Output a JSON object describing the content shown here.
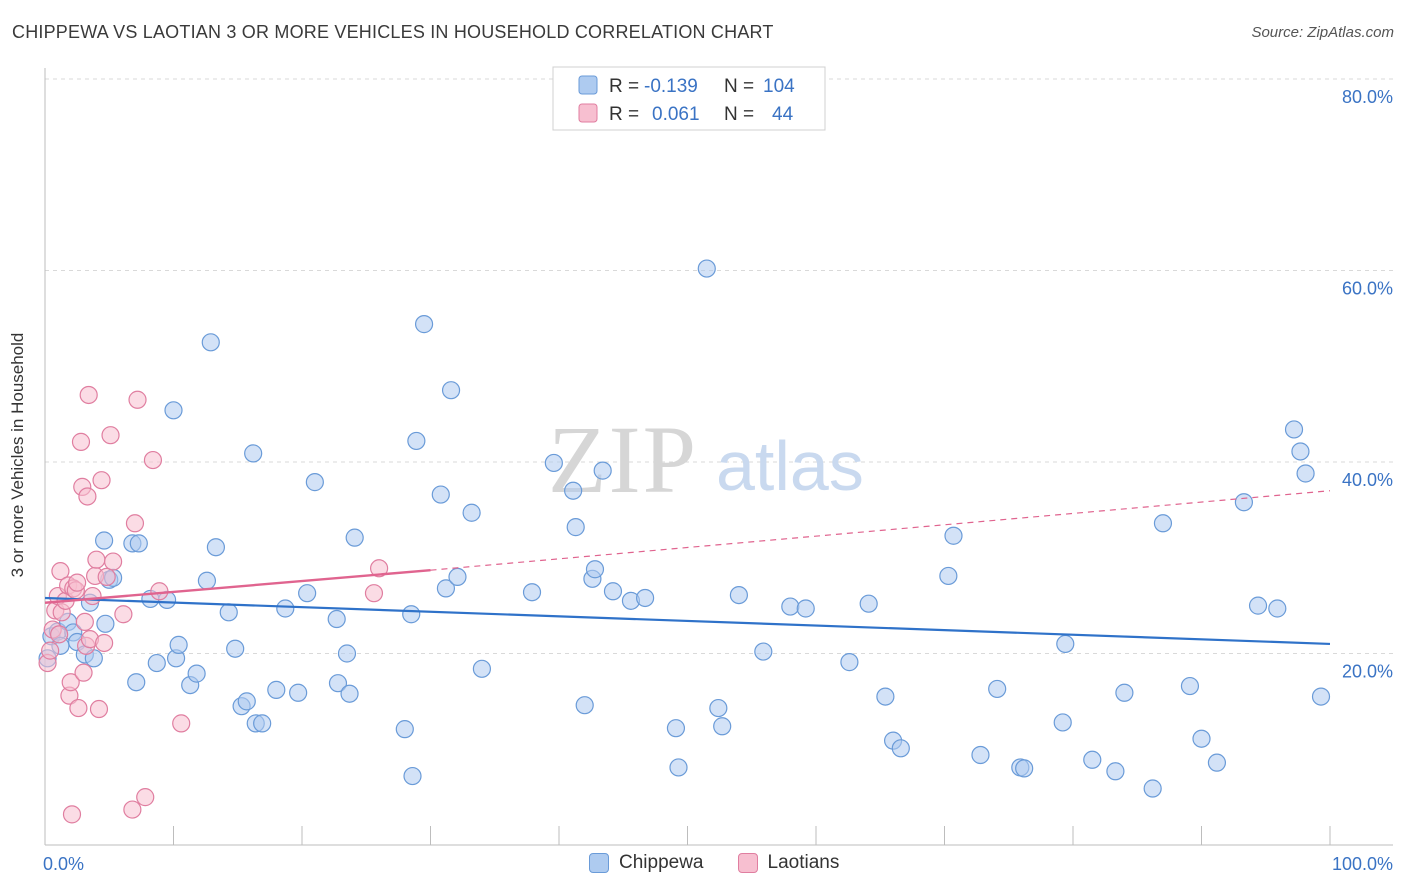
{
  "title": "CHIPPEWA VS LAOTIAN 3 OR MORE VEHICLES IN HOUSEHOLD CORRELATION CHART",
  "source": "Source: ZipAtlas.com",
  "watermark": {
    "zip": "ZIP",
    "atlas": "atlas"
  },
  "colors": {
    "chippewa_fill": "#aecbf0",
    "chippewa_stroke": "#6a9bd8",
    "chippewa_line": "#2f72c9",
    "laotian_fill": "#f7bfd0",
    "laotian_stroke": "#e07ea0",
    "laotian_line": "#e0648f",
    "axis_text": "#3a73c4",
    "grid": "#d9d9d9"
  },
  "legend": [
    {
      "r_label": "R =",
      "r_value": "-0.139",
      "n_label": "N =",
      "n_value": "104"
    },
    {
      "r_label": "R =",
      "r_value": "0.061",
      "n_label": "N =",
      "n_value": "44"
    }
  ],
  "chart_data": {
    "type": "scatter",
    "title": "CHIPPEWA VS LAOTIAN 3 OR MORE VEHICLES IN HOUSEHOLD CORRELATION CHART",
    "xlabel": "",
    "ylabel": "3 or more Vehicles in Household",
    "xlim": [
      0,
      100
    ],
    "ylim": [
      0,
      80
    ],
    "x_tick_labels": [
      "0.0%",
      "100.0%"
    ],
    "y_tick_labels": [
      "20.0%",
      "40.0%",
      "60.0%",
      "80.0%"
    ],
    "y_ticks": [
      20,
      40,
      60,
      80
    ],
    "grid": true,
    "legend_placement": "bottom-center",
    "series": [
      {
        "name": "Chippewa",
        "r": -0.139,
        "n": 104,
        "trend": {
          "x": [
            0,
            100
          ],
          "y": [
            25.8,
            21.0
          ]
        },
        "points": [
          [
            0.5,
            21.8
          ],
          [
            1.0,
            22.3
          ],
          [
            1.2,
            20.8
          ],
          [
            1.8,
            23.3
          ],
          [
            2.2,
            22.2
          ],
          [
            2.5,
            21.2
          ],
          [
            3.1,
            19.9
          ],
          [
            3.8,
            19.5
          ],
          [
            3.5,
            25.3
          ],
          [
            4.7,
            23.1
          ],
          [
            5.0,
            27.7
          ],
          [
            5.3,
            27.9
          ],
          [
            4.6,
            31.8
          ],
          [
            6.8,
            31.5
          ],
          [
            7.3,
            31.5
          ],
          [
            7.1,
            17.0
          ],
          [
            8.2,
            25.7
          ],
          [
            8.7,
            19.0
          ],
          [
            9.5,
            25.6
          ],
          [
            10.2,
            19.5
          ],
          [
            10.4,
            20.9
          ],
          [
            11.3,
            16.7
          ],
          [
            11.8,
            17.9
          ],
          [
            12.6,
            27.6
          ],
          [
            12.9,
            52.5
          ],
          [
            10.0,
            45.4
          ],
          [
            13.3,
            31.1
          ],
          [
            14.3,
            24.3
          ],
          [
            14.8,
            20.5
          ],
          [
            15.3,
            14.5
          ],
          [
            15.7,
            15.0
          ],
          [
            16.4,
            12.7
          ],
          [
            16.9,
            12.7
          ],
          [
            16.2,
            40.9
          ],
          [
            18.0,
            16.2
          ],
          [
            18.7,
            24.7
          ],
          [
            19.7,
            15.9
          ],
          [
            20.4,
            26.3
          ],
          [
            21.0,
            37.9
          ],
          [
            22.7,
            23.6
          ],
          [
            22.8,
            16.9
          ],
          [
            23.5,
            20.0
          ],
          [
            23.7,
            15.8
          ],
          [
            24.1,
            32.1
          ],
          [
            28.0,
            12.1
          ],
          [
            28.5,
            24.1
          ],
          [
            28.6,
            7.2
          ],
          [
            28.9,
            42.2
          ],
          [
            29.5,
            54.4
          ],
          [
            30.8,
            36.6
          ],
          [
            31.2,
            26.8
          ],
          [
            31.6,
            47.5
          ],
          [
            32.1,
            28.0
          ],
          [
            33.2,
            34.7
          ],
          [
            34.0,
            18.4
          ],
          [
            37.9,
            26.4
          ],
          [
            39.6,
            39.9
          ],
          [
            41.1,
            37.0
          ],
          [
            41.3,
            33.2
          ],
          [
            42.0,
            14.6
          ],
          [
            42.6,
            27.8
          ],
          [
            42.8,
            28.8
          ],
          [
            43.4,
            39.1
          ],
          [
            44.2,
            26.5
          ],
          [
            45.6,
            25.5
          ],
          [
            46.7,
            25.8
          ],
          [
            49.1,
            12.2
          ],
          [
            49.3,
            8.1
          ],
          [
            51.5,
            60.2
          ],
          [
            52.4,
            14.3
          ],
          [
            52.7,
            12.4
          ],
          [
            54.0,
            26.1
          ],
          [
            55.9,
            20.2
          ],
          [
            58.0,
            24.9
          ],
          [
            59.2,
            24.7
          ],
          [
            62.6,
            19.1
          ],
          [
            64.1,
            25.2
          ],
          [
            65.4,
            15.5
          ],
          [
            66.0,
            10.9
          ],
          [
            66.6,
            10.1
          ],
          [
            70.3,
            28.1
          ],
          [
            70.7,
            32.3
          ],
          [
            72.8,
            9.4
          ],
          [
            74.1,
            16.3
          ],
          [
            75.9,
            8.1
          ],
          [
            76.2,
            8.0
          ],
          [
            79.2,
            12.8
          ],
          [
            79.4,
            21.0
          ],
          [
            81.5,
            8.9
          ],
          [
            83.3,
            7.7
          ],
          [
            84.0,
            15.9
          ],
          [
            86.2,
            5.9
          ],
          [
            87.0,
            33.6
          ],
          [
            89.1,
            16.6
          ],
          [
            90.0,
            11.1
          ],
          [
            91.2,
            8.6
          ],
          [
            93.3,
            35.8
          ],
          [
            94.4,
            25.0
          ],
          [
            95.9,
            24.7
          ],
          [
            97.2,
            43.4
          ],
          [
            97.7,
            41.1
          ],
          [
            98.1,
            38.8
          ],
          [
            99.3,
            15.5
          ],
          [
            0.2,
            19.5
          ]
        ]
      },
      {
        "name": "Laotians",
        "r": 0.061,
        "n": 44,
        "trend": {
          "x": [
            0,
            30
          ],
          "y": [
            25.3,
            28.7
          ]
        },
        "trend_extended": {
          "x": [
            30,
            100
          ],
          "y": [
            28.7,
            37.0
          ]
        },
        "points": [
          [
            0.2,
            19.0
          ],
          [
            0.4,
            20.3
          ],
          [
            0.6,
            22.5
          ],
          [
            0.8,
            24.5
          ],
          [
            1.0,
            26.0
          ],
          [
            1.2,
            28.6
          ],
          [
            1.3,
            24.3
          ],
          [
            1.6,
            25.5
          ],
          [
            1.8,
            27.1
          ],
          [
            1.9,
            15.6
          ],
          [
            2.0,
            17.0
          ],
          [
            2.2,
            26.8
          ],
          [
            2.4,
            26.6
          ],
          [
            2.5,
            27.4
          ],
          [
            2.8,
            42.1
          ],
          [
            2.6,
            14.3
          ],
          [
            2.9,
            37.4
          ],
          [
            3.0,
            18.0
          ],
          [
            3.2,
            20.8
          ],
          [
            3.1,
            23.3
          ],
          [
            3.5,
            21.5
          ],
          [
            3.4,
            47.0
          ],
          [
            3.3,
            36.4
          ],
          [
            3.7,
            26.0
          ],
          [
            3.9,
            28.1
          ],
          [
            4.0,
            29.8
          ],
          [
            4.2,
            14.2
          ],
          [
            4.4,
            38.1
          ],
          [
            4.6,
            21.1
          ],
          [
            4.8,
            28.0
          ],
          [
            5.1,
            42.8
          ],
          [
            5.3,
            29.6
          ],
          [
            6.1,
            24.1
          ],
          [
            6.8,
            3.7
          ],
          [
            7.0,
            33.6
          ],
          [
            7.2,
            46.5
          ],
          [
            7.8,
            5.0
          ],
          [
            8.4,
            40.2
          ],
          [
            8.9,
            26.5
          ],
          [
            10.6,
            12.7
          ],
          [
            2.1,
            3.2
          ],
          [
            1.1,
            22.0
          ],
          [
            25.6,
            26.3
          ],
          [
            26.0,
            28.9
          ]
        ]
      }
    ]
  },
  "bottom_legend": [
    "Chippewa",
    "Laotians"
  ]
}
